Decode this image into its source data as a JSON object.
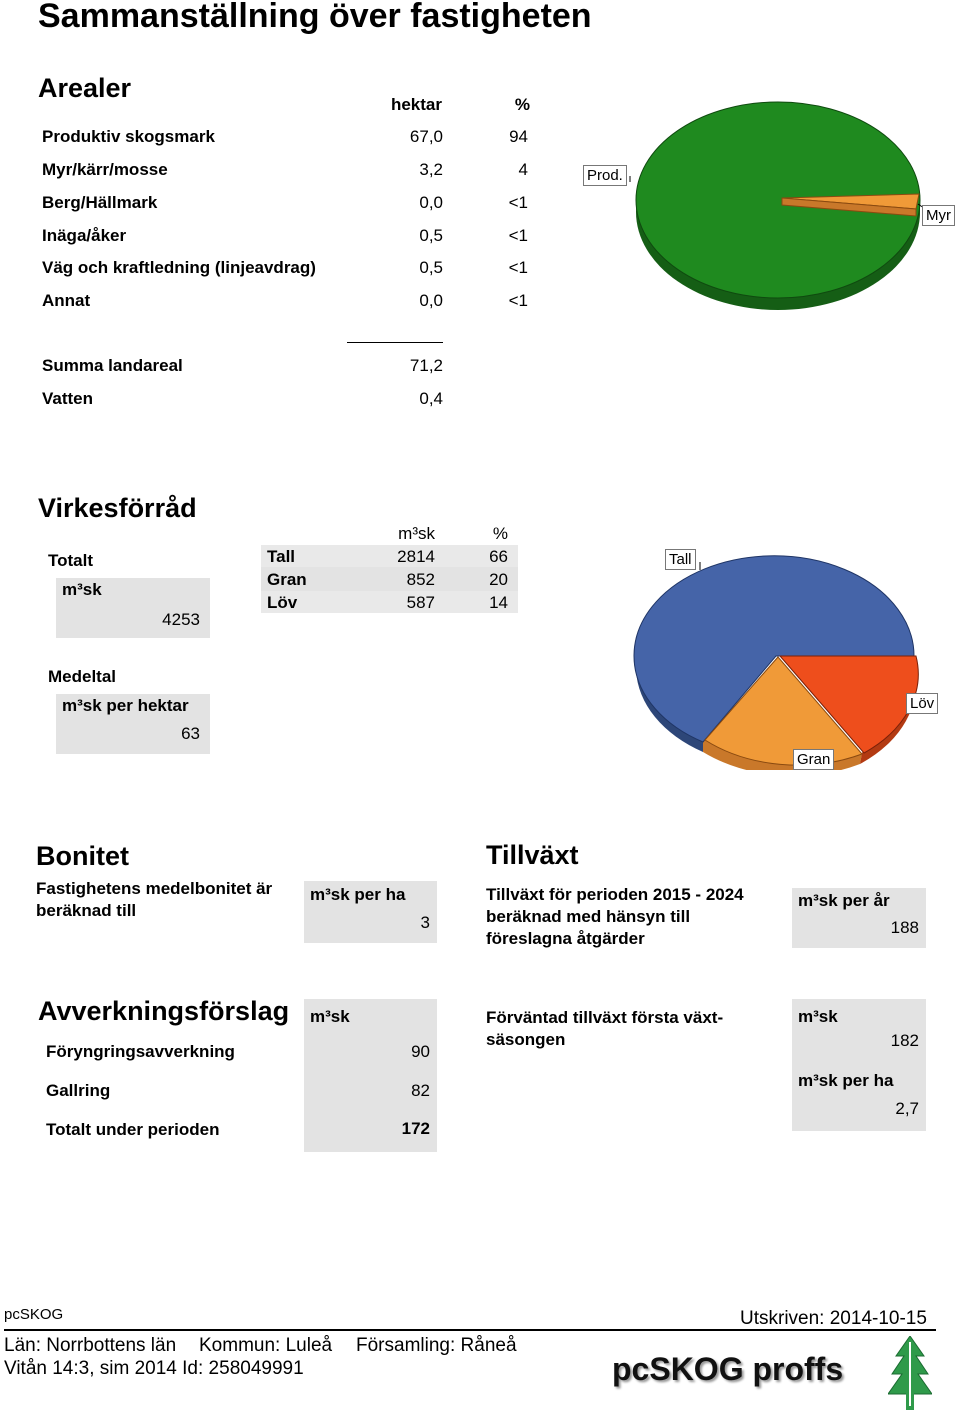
{
  "title": "Sammanställning över fastigheten",
  "arealer": {
    "heading": "Arealer",
    "col_hektar": "hektar",
    "col_pct": "%",
    "rows": [
      {
        "label": "Produktiv skogsmark",
        "hektar": "67,0",
        "pct": "94"
      },
      {
        "label": "Myr/kärr/mosse",
        "hektar": "3,2",
        "pct": "4"
      },
      {
        "label": "Berg/Hällmark",
        "hektar": "0,0",
        "pct": "<1"
      },
      {
        "label": "Inäga/åker",
        "hektar": "0,5",
        "pct": "<1"
      },
      {
        "label": "Väg och kraftledning (linjeavdrag)",
        "hektar": "0,5",
        "pct": "<1"
      },
      {
        "label": "Annat",
        "hektar": "0,0",
        "pct": "<1"
      }
    ],
    "summa_label": "Summa landareal",
    "summa_value": "71,2",
    "vatten_label": "Vatten",
    "vatten_value": "0,4",
    "pie": {
      "label_prod": "Prod.",
      "label_myr": "Myr",
      "color_prod": "#1f8a1f",
      "color_myr": "#f09a38"
    }
  },
  "virkesforrad": {
    "heading": "Virkesförråd",
    "totalt_label": "Totalt",
    "unit": "m³sk",
    "totalt_value": "4253",
    "col_m3sk": "m³sk",
    "col_pct": "%",
    "rows": [
      {
        "label": "Tall",
        "m3sk": "2814",
        "pct": "66"
      },
      {
        "label": "Gran",
        "m3sk": "852",
        "pct": "20"
      },
      {
        "label": "Löv",
        "m3sk": "587",
        "pct": "14"
      }
    ],
    "medeltal_label": "Medeltal",
    "per_hektar_label": "m³sk per hektar",
    "per_hektar_value": "63",
    "pie": {
      "label_tall": "Tall",
      "label_gran": "Gran",
      "label_lov": "Löv",
      "color_tall": "#4564a8",
      "color_gran": "#f09a38",
      "color_lov": "#ee4e1c"
    }
  },
  "bonitet": {
    "heading": "Bonitet",
    "text": "Fastighetens medelbonitet är beräknad till",
    "unit": "m³sk per ha",
    "value": "3"
  },
  "tillvaxt": {
    "heading": "Tillväxt",
    "text": "Tillväxt för perioden 2015 - 2024 beräknad med hänsyn till föreslagna åtgärder",
    "unit": "m³sk per år",
    "value": "188"
  },
  "avverkning": {
    "heading": "Avverkningsförslag",
    "unit": "m³sk",
    "rows": [
      {
        "label": "Föryngringsavverkning",
        "value": "90"
      },
      {
        "label": "Gallring",
        "value": "82"
      },
      {
        "label": "Totalt under perioden",
        "value": "172"
      }
    ]
  },
  "forvantad": {
    "text": "Förväntad tillväxt första växt-säsongen",
    "unit1": "m³sk",
    "value1": "182",
    "unit2": "m³sk per ha",
    "value2": "2,7"
  },
  "footer": {
    "brand_small": "pcSKOG",
    "printed": "Utskriven: 2014-10-15",
    "lan": "Län: Norrbottens län",
    "kommun": "Kommun: Luleå",
    "forsamling": "Församling: Råneå",
    "line2": "Vitån 14:3, sim 2014 Id: 258049991",
    "logo_text": "pcSKOG proffs",
    "logo_color": "#111111",
    "tree_color": "#2f9a4a"
  }
}
